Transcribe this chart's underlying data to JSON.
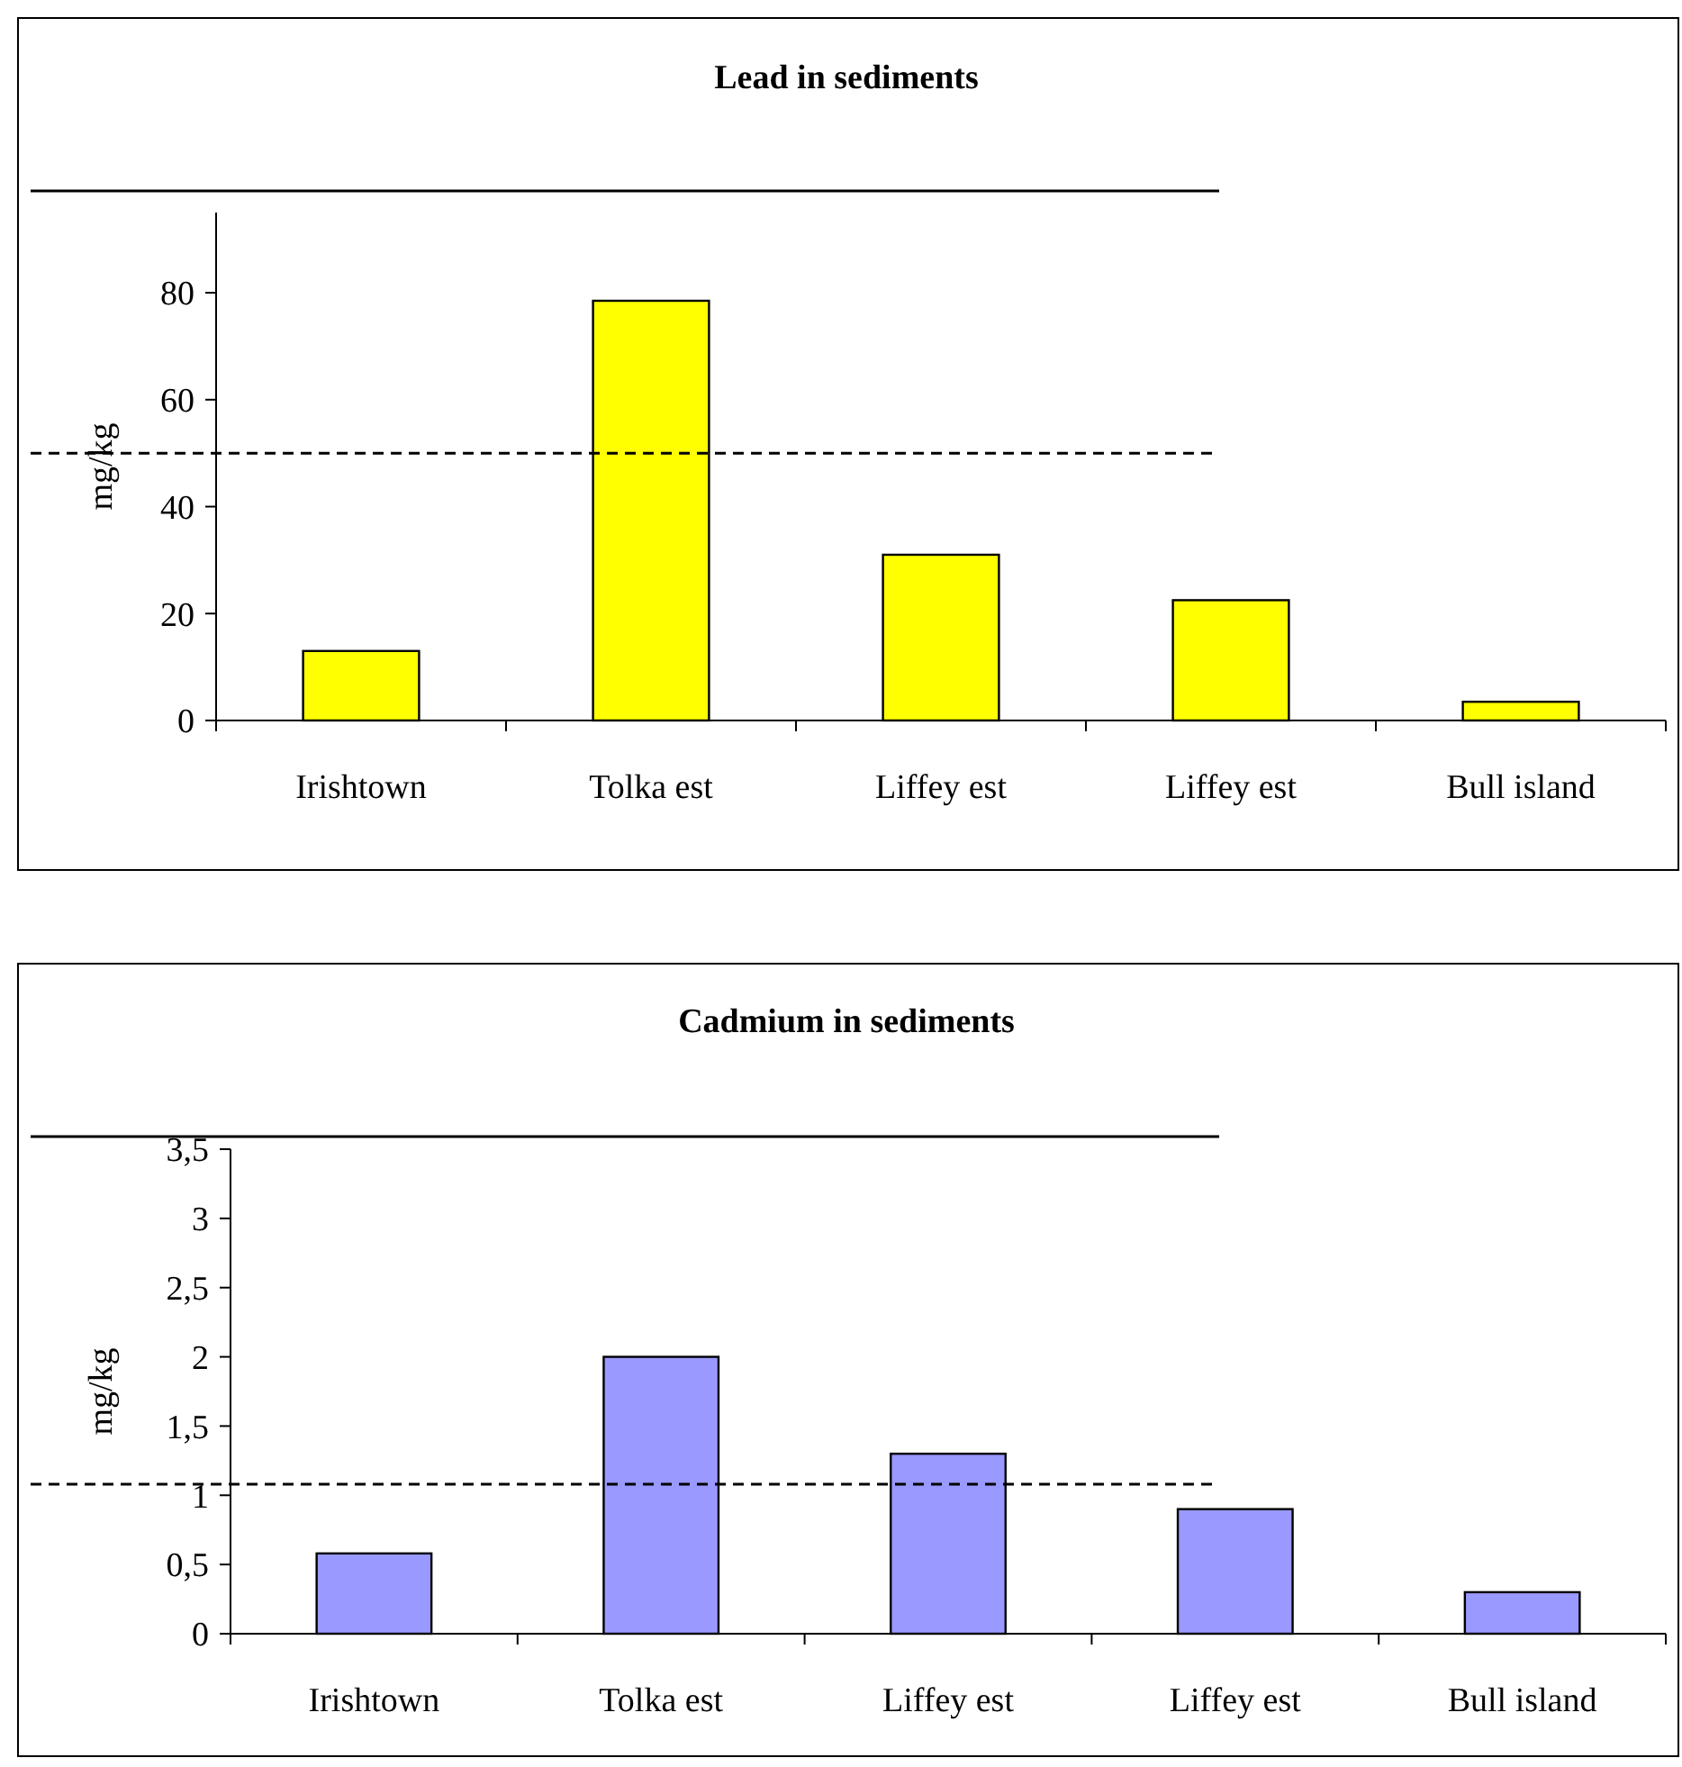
{
  "chart_data": [
    {
      "type": "bar",
      "title": "Lead in sediments",
      "ylabel": "mg/kg",
      "categories": [
        "Irishtown",
        "Tolka est",
        "Liffey est",
        "Liffey est",
        "Bull island"
      ],
      "values": [
        13,
        78.5,
        31,
        22.5,
        3.5
      ],
      "color": "#ffff00",
      "ylim": [
        0,
        95
      ],
      "yticks": [
        0,
        20,
        40,
        60,
        80
      ],
      "ref_lines": [
        {
          "axis": "y",
          "value": 50,
          "line_style": "dashed",
          "color": "#000000"
        }
      ],
      "grid": false
    },
    {
      "type": "bar",
      "title": "Cadmium in sediments",
      "ylabel": "mg/kg",
      "categories": [
        "Irishtown",
        "Tolka est",
        "Liffey est",
        "Liffey est",
        "Bull island"
      ],
      "values": [
        0.58,
        2.0,
        1.3,
        0.9,
        0.3
      ],
      "color": "#9999ff",
      "ylim": [
        0,
        3.5
      ],
      "yticks": [
        0,
        {
          "value": 0.5,
          "label": "0,5"
        },
        1,
        {
          "value": 1.5,
          "label": "1,5"
        },
        2,
        {
          "value": 2.5,
          "label": "2,5"
        },
        3,
        {
          "value": 3.5,
          "label": "3,5"
        }
      ],
      "ref_lines": [
        {
          "axis": "y",
          "value": 1.08,
          "line_style": "dashed",
          "color": "#000000"
        }
      ],
      "grid": false
    }
  ]
}
